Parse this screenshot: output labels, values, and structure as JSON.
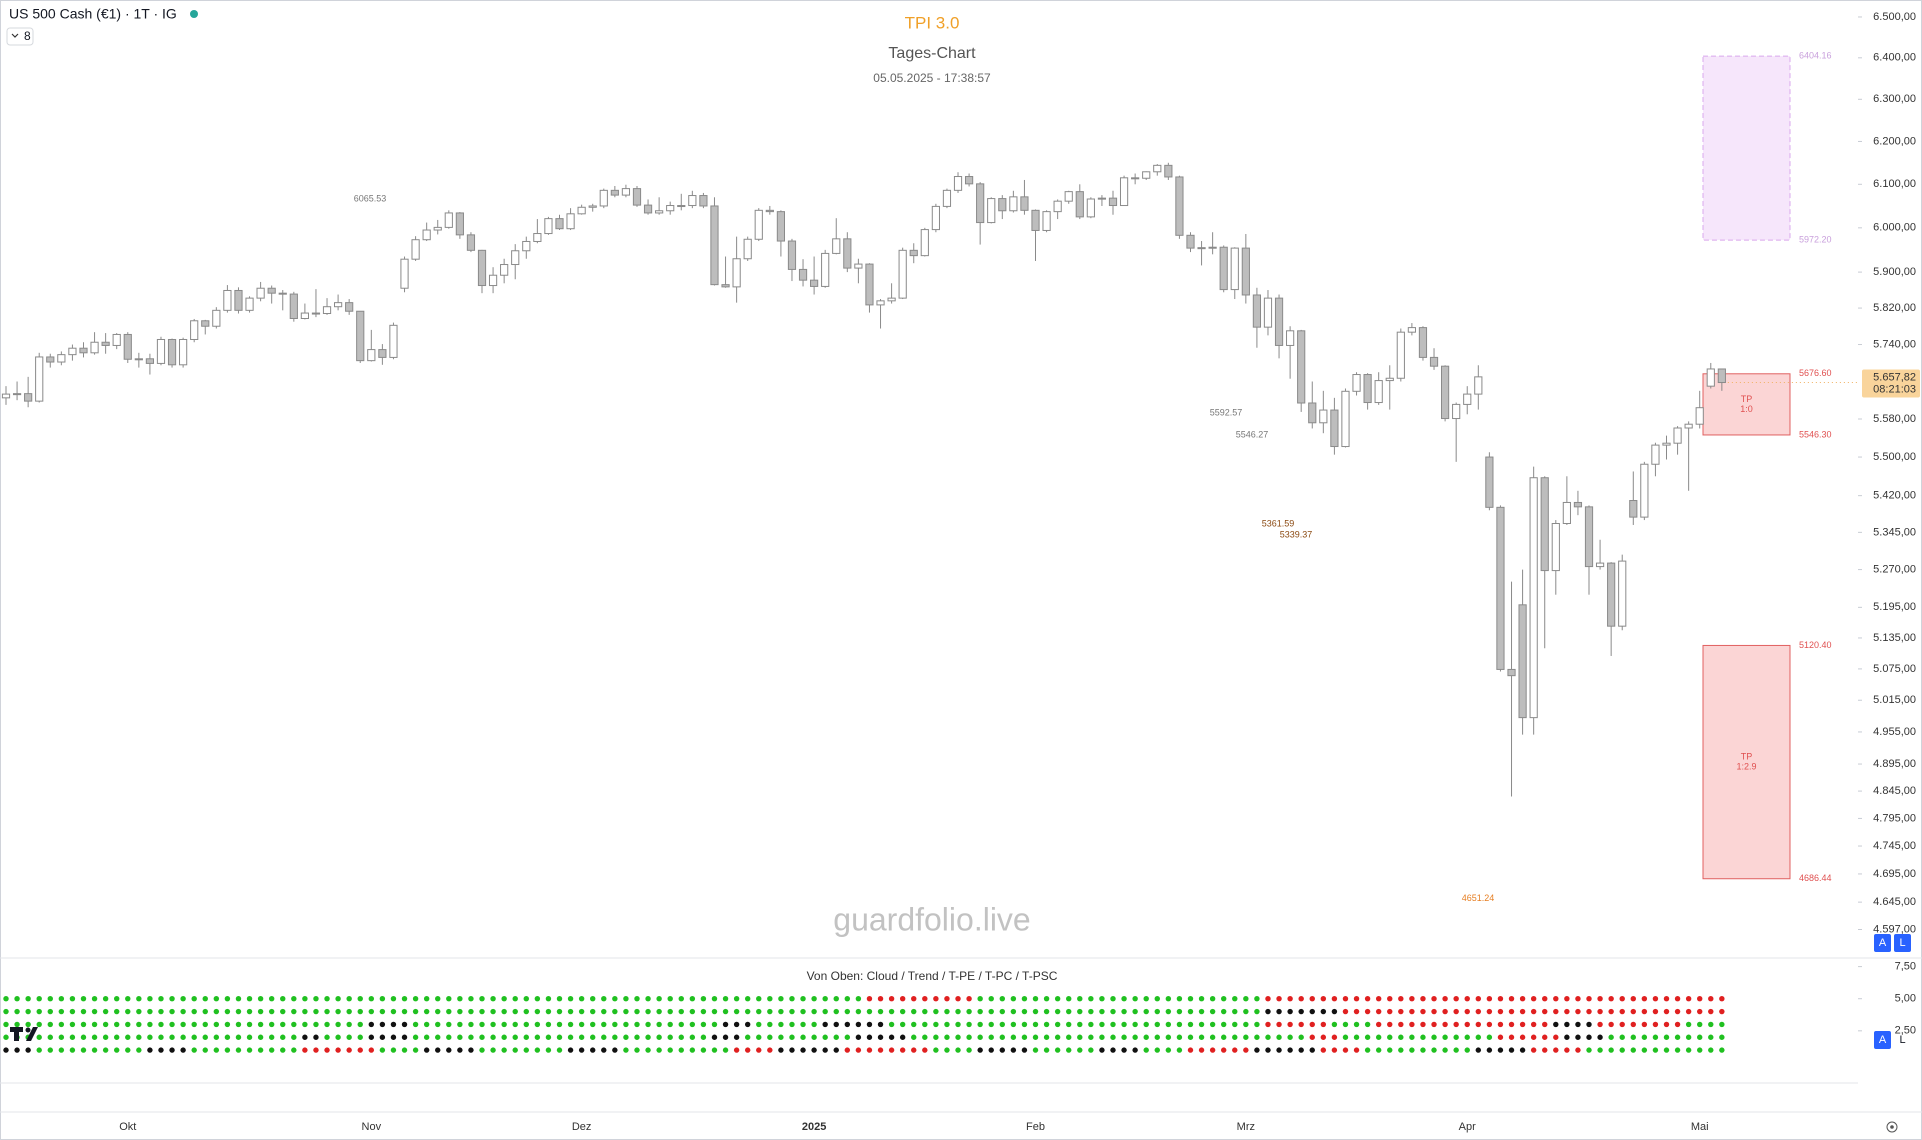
{
  "chart_data": {
    "type": "candlestick",
    "symbol": "US 500 Cash (€1) · 1T · IG",
    "indicator_count": "8",
    "title": "TPI 3.0",
    "subtitle": "Tages-Chart",
    "timestamp": "05.05.2025 - 17:38:57",
    "watermark": "guardfolio.live",
    "log_scale": true,
    "grid": false,
    "up_color": "#ffffff",
    "down_color": "#bdbdbd",
    "border_color": "#8a8a8a",
    "ylim": [
      4551,
      6542
    ],
    "yticks": [
      {
        "value": 6500,
        "label": "6.500,00"
      },
      {
        "value": 6400,
        "label": "6.400,00"
      },
      {
        "value": 6300,
        "label": "6.300,00"
      },
      {
        "value": 6200,
        "label": "6.200,00"
      },
      {
        "value": 6100,
        "label": "6.100,00"
      },
      {
        "value": 6000,
        "label": "6.000,00"
      },
      {
        "value": 5900,
        "label": "5.900,00"
      },
      {
        "value": 5820,
        "label": "5.820,00"
      },
      {
        "value": 5740,
        "label": "5.740,00"
      },
      {
        "value": 5580,
        "label": "5.580,00"
      },
      {
        "value": 5500,
        "label": "5.500,00"
      },
      {
        "value": 5420,
        "label": "5.420,00"
      },
      {
        "value": 5345,
        "label": "5.345,00"
      },
      {
        "value": 5270,
        "label": "5.270,00"
      },
      {
        "value": 5195,
        "label": "5.195,00"
      },
      {
        "value": 5135,
        "label": "5.135,00"
      },
      {
        "value": 5075,
        "label": "5.075,00"
      },
      {
        "value": 5015,
        "label": "5.015,00"
      },
      {
        "value": 4955,
        "label": "4.955,00"
      },
      {
        "value": 4895,
        "label": "4.895,00"
      },
      {
        "value": 4845,
        "label": "4.845,00"
      },
      {
        "value": 4795,
        "label": "4.795,00"
      },
      {
        "value": 4745,
        "label": "4.745,00"
      },
      {
        "value": 4695,
        "label": "4.695,00"
      },
      {
        "value": 4645,
        "label": "4.645,00"
      },
      {
        "value": 4597,
        "label": "4.597,00"
      }
    ],
    "categories": [
      null,
      null,
      null,
      null,
      null,
      null,
      null,
      null,
      null,
      null,
      null,
      "Okt",
      null,
      null,
      null,
      null,
      null,
      null,
      null,
      null,
      null,
      null,
      null,
      null,
      null,
      null,
      null,
      null,
      null,
      null,
      null,
      null,
      null,
      "Nov",
      null,
      null,
      null,
      null,
      null,
      null,
      null,
      null,
      null,
      null,
      null,
      null,
      null,
      null,
      null,
      null,
      null,
      null,
      "Dez",
      null,
      null,
      null,
      null,
      null,
      null,
      null,
      null,
      null,
      null,
      null,
      null,
      null,
      null,
      null,
      null,
      null,
      null,
      null,
      null,
      "2025",
      null,
      null,
      null,
      null,
      null,
      null,
      null,
      null,
      null,
      null,
      null,
      null,
      null,
      null,
      null,
      null,
      null,
      null,
      null,
      "Feb",
      null,
      null,
      null,
      null,
      null,
      null,
      null,
      null,
      null,
      null,
      null,
      null,
      null,
      null,
      null,
      null,
      null,
      null,
      "Mrz",
      null,
      null,
      null,
      null,
      null,
      null,
      null,
      null,
      null,
      null,
      null,
      null,
      null,
      null,
      null,
      null,
      null,
      null,
      null,
      "Apr",
      null,
      null,
      null,
      null,
      null,
      null,
      null,
      null,
      null,
      null,
      null,
      null,
      null,
      null,
      null,
      null,
      null,
      null,
      null,
      null,
      "Mai",
      null,
      null
    ],
    "open": [
      5625,
      5633,
      5634,
      5618,
      5713,
      5702,
      5718,
      5732,
      5722,
      5745,
      5738,
      5762,
      5708,
      5709,
      5699,
      5751,
      5696,
      5751,
      5792,
      5780,
      5815,
      5859,
      5815,
      5842,
      5864,
      5853,
      5851,
      5797,
      5809,
      5808,
      5823,
      5832,
      5813,
      5705,
      5729,
      5712,
      5864,
      5929,
      5973,
      5995,
      6001,
      6034,
      5984,
      5949,
      5870,
      5893,
      5917,
      5948,
      5969,
      5987,
      6021,
      5998,
      6032,
      6047,
      6050,
      6086,
      6075,
      6090,
      6052,
      6034,
      6039,
      6051,
      6051,
      6074,
      6050,
      5872,
      5867,
      5930,
      5974,
      6040,
      6037,
      5970,
      5906,
      5882,
      5868,
      5942,
      5975,
      5909,
      5918,
      5827,
      5836,
      5842,
      5949,
      5937,
      5996,
      6049,
      6086,
      6118,
      6101,
      6012,
      6067,
      6039,
      6071,
      6040,
      5994,
      6037,
      6061,
      6083,
      6025,
      6066,
      6068,
      6051,
      6115,
      6114,
      6129,
      6144,
      6117,
      5983,
      5954,
      5955,
      5956,
      5861,
      5954,
      5849,
      5778,
      5842,
      5738,
      5770,
      5614,
      5572,
      5599,
      5522,
      5639,
      5675,
      5615,
      5662,
      5667,
      5767,
      5777,
      5712,
      5693,
      5581,
      5611,
      5633,
      5500,
      5396,
      5074,
      5200,
      4982,
      5457,
      5268,
      5363,
      5406,
      5397,
      5276,
      5283,
      5158,
      5410,
      5376,
      5485,
      5525,
      5529,
      5561,
      5569,
      5650,
      5687
    ],
    "high": [
      5650,
      5660,
      5670,
      5722,
      5720,
      5725,
      5740,
      5745,
      5767,
      5765,
      5765,
      5767,
      5722,
      5720,
      5757,
      5753,
      5755,
      5796,
      5794,
      5822,
      5871,
      5866,
      5846,
      5878,
      5870,
      5860,
      5856,
      5830,
      5862,
      5842,
      5850,
      5840,
      5813,
      5772,
      5741,
      5788,
      5935,
      5981,
      6012,
      6018,
      6040,
      6036,
      5990,
      5950,
      5911,
      5930,
      5963,
      5980,
      6020,
      6025,
      6030,
      6045,
      6053,
      6055,
      6090,
      6096,
      6099,
      6096,
      6065,
      6070,
      6060,
      6078,
      6085,
      6080,
      6070,
      5935,
      5980,
      5980,
      6045,
      6050,
      6040,
      5975,
      5929,
      5935,
      5950,
      6022,
      5990,
      5930,
      5920,
      5840,
      5875,
      5955,
      5965,
      6000,
      6055,
      6090,
      6128,
      6125,
      6105,
      6070,
      6075,
      6085,
      6110,
      6042,
      6040,
      6065,
      6085,
      6100,
      6070,
      6075,
      6085,
      6120,
      6125,
      6130,
      6147,
      6150,
      6120,
      5990,
      5970,
      5990,
      5960,
      5956,
      5986,
      5865,
      5860,
      5850,
      5780,
      5772,
      5660,
      5640,
      5625,
      5645,
      5680,
      5678,
      5680,
      5695,
      5775,
      5787,
      5780,
      5732,
      5695,
      5615,
      5650,
      5695,
      5510,
      5400,
      5246,
      5270,
      5480,
      5460,
      5370,
      5460,
      5430,
      5400,
      5330,
      5285,
      5300,
      5470,
      5490,
      5530,
      5545,
      5565,
      5575,
      5640,
      5700,
      5687
    ],
    "low": [
      5610,
      5620,
      5605,
      5615,
      5690,
      5695,
      5705,
      5712,
      5718,
      5720,
      5730,
      5700,
      5690,
      5675,
      5695,
      5690,
      5690,
      5745,
      5762,
      5775,
      5810,
      5808,
      5810,
      5835,
      5830,
      5815,
      5790,
      5795,
      5800,
      5805,
      5815,
      5805,
      5700,
      5703,
      5696,
      5708,
      5855,
      5925,
      5970,
      5985,
      5998,
      5975,
      5945,
      5853,
      5853,
      5875,
      5884,
      5930,
      5965,
      5984,
      5995,
      5995,
      6030,
      6037,
      6045,
      6070,
      6070,
      6048,
      6030,
      6030,
      6030,
      6040,
      6045,
      6045,
      5870,
      5865,
      5832,
      5925,
      5970,
      6030,
      5935,
      5880,
      5868,
      5850,
      5865,
      5940,
      5900,
      5875,
      5810,
      5775,
      5830,
      5840,
      5920,
      5935,
      5990,
      6045,
      6080,
      6095,
      5962,
      6010,
      6020,
      6035,
      6030,
      5925,
      5990,
      6020,
      6055,
      6020,
      6022,
      6050,
      6030,
      6050,
      6100,
      6110,
      6120,
      6110,
      5975,
      5945,
      5915,
      5940,
      5855,
      5840,
      5830,
      5733,
      5760,
      5710,
      5666,
      5595,
      5560,
      5550,
      5505,
      5520,
      5630,
      5600,
      5610,
      5600,
      5660,
      5760,
      5705,
      5685,
      5575,
      5490,
      5590,
      5600,
      5390,
      5070,
      4835,
      4950,
      4950,
      5115,
      5220,
      5360,
      5380,
      5220,
      5270,
      5100,
      5150,
      5360,
      5370,
      5460,
      5495,
      5505,
      5430,
      5560,
      5645,
      5640
    ],
    "close": [
      5633,
      5634,
      5618,
      5713,
      5702,
      5718,
      5732,
      5722,
      5745,
      5738,
      5762,
      5708,
      5709,
      5699,
      5751,
      5696,
      5751,
      5792,
      5780,
      5815,
      5859,
      5815,
      5842,
      5864,
      5853,
      5851,
      5797,
      5809,
      5808,
      5823,
      5832,
      5813,
      5705,
      5729,
      5712,
      5782,
      5929,
      5973,
      5995,
      6001,
      6034,
      5984,
      5949,
      5870,
      5893,
      5917,
      5948,
      5969,
      5987,
      6021,
      5998,
      6032,
      6047,
      6050,
      6086,
      6075,
      6090,
      6052,
      6034,
      6039,
      6051,
      6051,
      6074,
      6050,
      5872,
      5867,
      5930,
      5974,
      6040,
      6037,
      5970,
      5906,
      5882,
      5868,
      5942,
      5975,
      5909,
      5918,
      5827,
      5836,
      5842,
      5949,
      5937,
      5996,
      6049,
      6086,
      6118,
      6101,
      6012,
      6067,
      6039,
      6071,
      6040,
      5994,
      6037,
      6061,
      6083,
      6025,
      6066,
      6068,
      6051,
      6115,
      6114,
      6129,
      6144,
      6117,
      5983,
      5954,
      5955,
      5956,
      5861,
      5954,
      5849,
      5778,
      5842,
      5738,
      5770,
      5614,
      5572,
      5599,
      5522,
      5639,
      5675,
      5615,
      5662,
      5667,
      5767,
      5777,
      5712,
      5693,
      5581,
      5611,
      5633,
      5670,
      5396,
      5074,
      5062,
      4982,
      5457,
      5268,
      5363,
      5406,
      5397,
      5276,
      5283,
      5158,
      5287,
      5376,
      5485,
      5525,
      5529,
      5561,
      5569,
      5604,
      5687,
      5657.82
    ],
    "last_price": {
      "value": 5657.82,
      "label": "5.657,82",
      "countdown": "08:21:03",
      "color": "#f9d49b"
    },
    "zones": [
      {
        "top": {
          "value": 6404.16,
          "label": "6404.16"
        },
        "bottom": {
          "value": 5972.2,
          "label": "5972.20"
        },
        "fill": "#f6e6fb",
        "stroke": "#d9a8ec",
        "label_color": "#c9a0dc"
      },
      {
        "top": {
          "value": 5676.6,
          "label": "5676.60"
        },
        "bottom": {
          "value": 5546.3,
          "label": "5546.30"
        },
        "fill": "#fbd5d5",
        "stroke": "#e06060",
        "label_color": "#e05050",
        "text": [
          "TP",
          "1:0"
        ]
      },
      {
        "top": {
          "value": 5120.4,
          "label": "5120.40"
        },
        "bottom": {
          "value": 4686.44,
          "label": "4686.44"
        },
        "fill": "#fbd5d5",
        "stroke": "#e06060",
        "label_color": "#e05050",
        "text": [
          "TP",
          "1:2.9"
        ]
      }
    ],
    "annotations": [
      {
        "value": 6065.53,
        "label": "6065.53",
        "color": "#777777"
      },
      {
        "value": 5592.57,
        "label": "5592.57",
        "color": "#777777"
      },
      {
        "value": 5546.27,
        "label": "5546.27",
        "color": "#777777"
      },
      {
        "value": 5361.59,
        "label": "5361.59",
        "color": "#8b4a12"
      },
      {
        "value": 5339.37,
        "label": "5339.37",
        "color": "#8b4a12"
      },
      {
        "value": 4651.24,
        "label": "4651.24",
        "color": "#e67e22"
      }
    ],
    "buttons": [
      "A",
      "L"
    ],
    "panel": {
      "title": "Von Oben: Cloud / Trend / T-PE / T-PC / T-PSC",
      "ylim": [
        -1.25,
        8.17
      ],
      "yticks": [
        {
          "value": 7.5,
          "label": "7,50"
        },
        {
          "value": 5,
          "label": "5,00"
        },
        {
          "value": 2.5,
          "label": "2,50"
        }
      ],
      "rows": [
        {
          "value": 5,
          "segments": [
            {
              "color": "#20c020",
              "n": 78
            },
            {
              "color": "#e02020",
              "n": 10
            },
            {
              "color": "#20c020",
              "n": 26
            },
            {
              "color": "#e02020",
              "n": 42
            }
          ]
        },
        {
          "value": 4,
          "segments": [
            {
              "color": "#20c020",
              "n": 114
            },
            {
              "color": "#111111",
              "n": 7
            },
            {
              "color": "#e02020",
              "n": 35
            }
          ]
        },
        {
          "value": 3,
          "segments": [
            {
              "color": "#20c020",
              "n": 33
            },
            {
              "color": "#111111",
              "n": 4
            },
            {
              "color": "#20c020",
              "n": 28
            },
            {
              "color": "#111111",
              "n": 3
            },
            {
              "color": "#20c020",
              "n": 6
            },
            {
              "color": "#111111",
              "n": 6
            },
            {
              "color": "#20c020",
              "n": 34
            },
            {
              "color": "#e02020",
              "n": 6
            },
            {
              "color": "#20c020",
              "n": 4
            },
            {
              "color": "#e02020",
              "n": 16
            },
            {
              "color": "#111111",
              "n": 4
            },
            {
              "color": "#e02020",
              "n": 8
            },
            {
              "color": "#20c020",
              "n": 4
            }
          ]
        },
        {
          "value": 2,
          "segments": [
            {
              "color": "#20c020",
              "n": 27
            },
            {
              "color": "#111111",
              "n": 2
            },
            {
              "color": "#20c020",
              "n": 4
            },
            {
              "color": "#111111",
              "n": 4
            },
            {
              "color": "#20c020",
              "n": 27
            },
            {
              "color": "#111111",
              "n": 3
            },
            {
              "color": "#20c020",
              "n": 10
            },
            {
              "color": "#111111",
              "n": 5
            },
            {
              "color": "#20c020",
              "n": 36
            },
            {
              "color": "#e02020",
              "n": 3
            },
            {
              "color": "#20c020",
              "n": 14
            },
            {
              "color": "#e02020",
              "n": 6
            },
            {
              "color": "#111111",
              "n": 4
            },
            {
              "color": "#20c020",
              "n": 11
            }
          ]
        },
        {
          "value": 1,
          "segments": [
            {
              "color": "#111111",
              "n": 3
            },
            {
              "color": "#20c020",
              "n": 10
            },
            {
              "color": "#111111",
              "n": 4
            },
            {
              "color": "#20c020",
              "n": 10
            },
            {
              "color": "#e02020",
              "n": 7
            },
            {
              "color": "#20c020",
              "n": 4
            },
            {
              "color": "#111111",
              "n": 5
            },
            {
              "color": "#20c020",
              "n": 8
            },
            {
              "color": "#111111",
              "n": 5
            },
            {
              "color": "#20c020",
              "n": 10
            },
            {
              "color": "#e02020",
              "n": 4
            },
            {
              "color": "#111111",
              "n": 6
            },
            {
              "color": "#e02020",
              "n": 8
            },
            {
              "color": "#20c020",
              "n": 4
            },
            {
              "color": "#111111",
              "n": 5
            },
            {
              "color": "#20c020",
              "n": 6
            },
            {
              "color": "#111111",
              "n": 4
            },
            {
              "color": "#20c020",
              "n": 4
            },
            {
              "color": "#e02020",
              "n": 6
            },
            {
              "color": "#111111",
              "n": 6
            },
            {
              "color": "#e02020",
              "n": 4
            },
            {
              "color": "#20c020",
              "n": 10
            },
            {
              "color": "#111111",
              "n": 5
            },
            {
              "color": "#e02020",
              "n": 5
            },
            {
              "color": "#20c020",
              "n": 13
            }
          ]
        }
      ]
    }
  }
}
